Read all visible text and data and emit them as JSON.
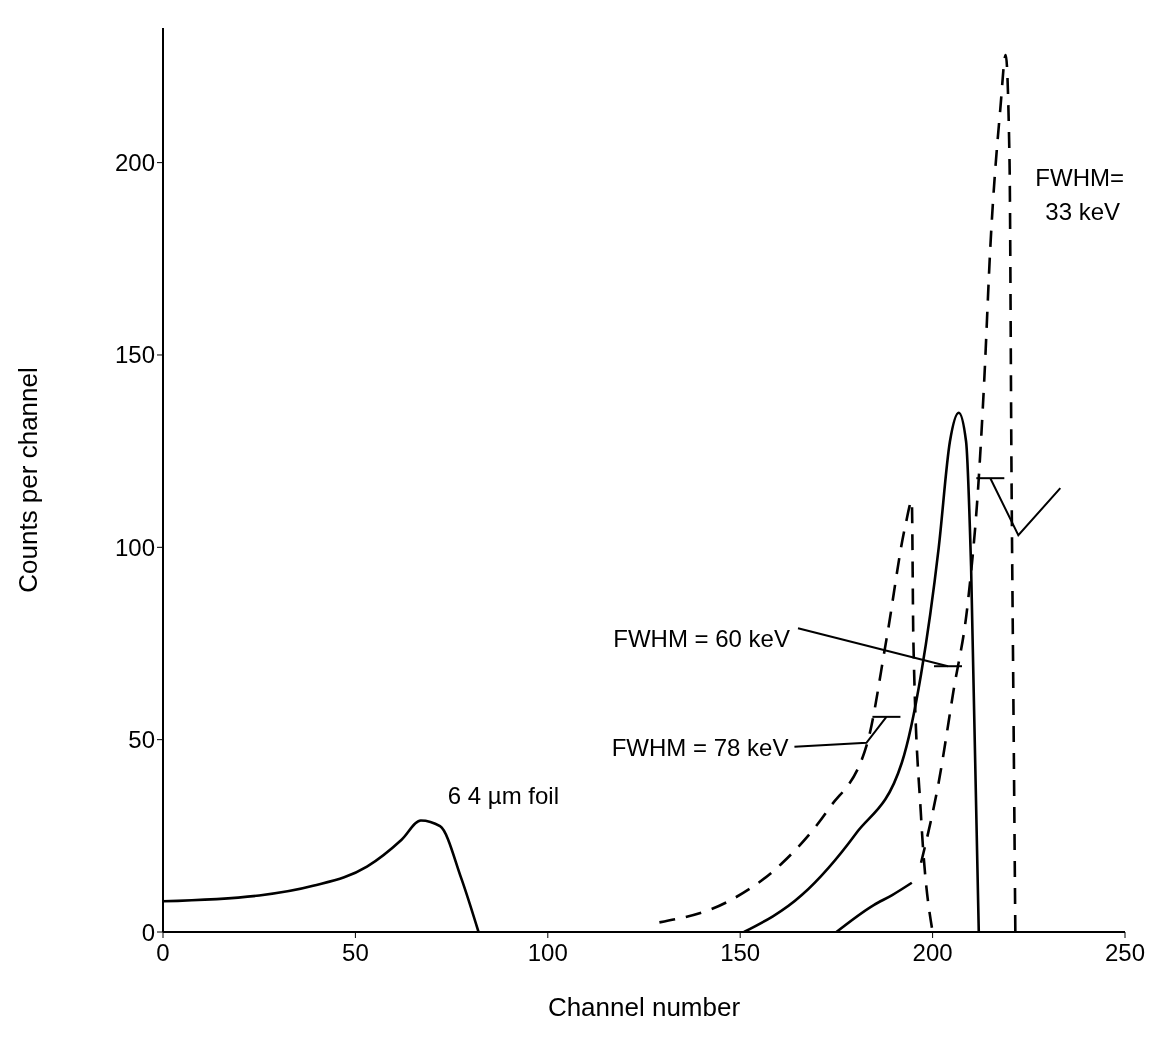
{
  "chart_data": {
    "type": "line",
    "xlabel": "Channel number",
    "ylabel": "Counts per channel",
    "xlim": [
      0,
      250
    ],
    "xticks": [
      0,
      50,
      100,
      150,
      200,
      250
    ],
    "ylim": [
      0,
      235
    ],
    "yticks": [
      0,
      50,
      100,
      150,
      200
    ],
    "grid": false,
    "marker": "none",
    "series": [
      {
        "color": "#000000",
        "line_style": "solid",
        "x": [
          0,
          25,
          39,
          53,
          62,
          67,
          72,
          77.5,
          82
        ],
        "values": [
          8,
          9.5,
          12,
          17,
          24,
          29,
          27.5,
          14,
          0
        ]
      },
      {
        "color": "#000000",
        "line_style": "dashed",
        "x": [
          129,
          147,
          161,
          173,
          183,
          188,
          193,
          194.6,
          195,
          197,
          200
        ],
        "values": [
          2.5,
          8,
          18,
          32,
          49,
          76,
          106,
          112,
          76,
          30,
          0
        ]
      },
      {
        "color": "#000000",
        "line_style": "solid",
        "x": [
          151,
          166,
          180,
          192,
          197,
          201.6,
          204.5,
          206.8,
          208.7,
          210,
          212
        ],
        "values": [
          0,
          9.6,
          25.5,
          44,
          67,
          100,
          127.5,
          135,
          127.5,
          95,
          0
        ]
      },
      {
        "color": "#000000",
        "line_style": "solid",
        "x": [
          175,
          184.7,
          189.5,
          194.6
        ],
        "values": [
          0,
          7,
          9.6,
          12.8
        ]
      },
      {
        "color": "#000000",
        "line_style": "dashed",
        "x": [
          197,
          201.6,
          205.4,
          209.2,
          212,
          213.4,
          215,
          217.6,
          219,
          220,
          220.5,
          221,
          221.5
        ],
        "values": [
          18,
          39,
          62.5,
          86,
          118,
          143,
          178,
          214,
          228,
          200,
          120,
          60,
          0
        ]
      }
    ],
    "annotations": [
      "FWHM = 60 keV",
      "FWHM = 78 keV",
      "FWHM=\n33 keV",
      "6 4 µm foil"
    ]
  }
}
